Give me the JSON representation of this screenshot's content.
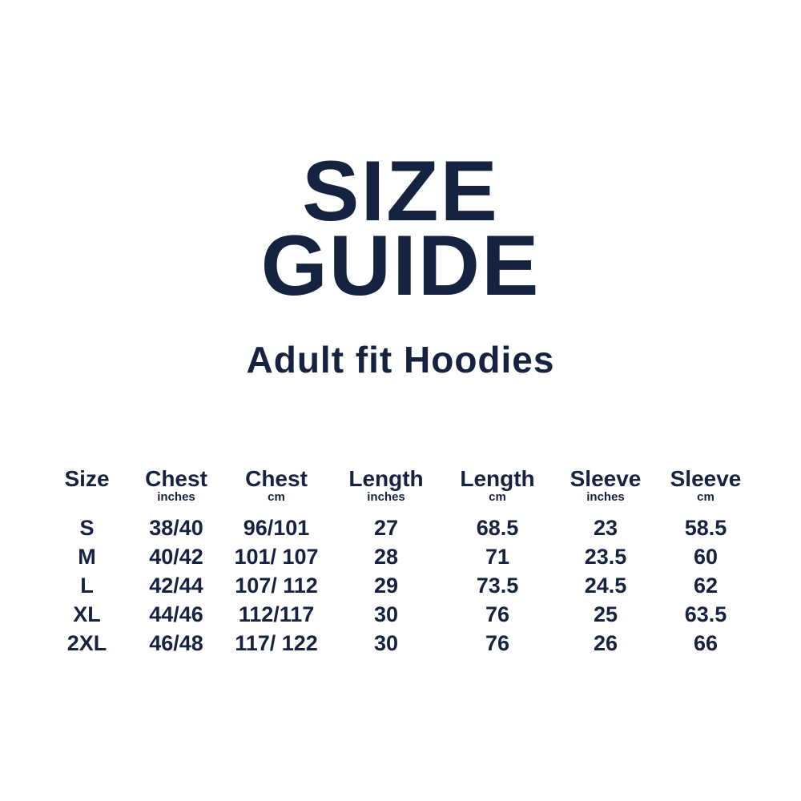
{
  "header": {
    "title_line1": "SIZE",
    "title_line2": "GUIDE",
    "subtitle": "Adult fit Hoodies"
  },
  "colors": {
    "background": "#FFFFFF",
    "text": "#152240"
  },
  "chart_data": {
    "type": "table",
    "title": "SIZE GUIDE",
    "subtitle": "Adult fit Hoodies",
    "columns": [
      {
        "label": "Size",
        "unit": ""
      },
      {
        "label": "Chest",
        "unit": "inches"
      },
      {
        "label": "Chest",
        "unit": "cm"
      },
      {
        "label": "Length",
        "unit": "inches"
      },
      {
        "label": "Length",
        "unit": "cm"
      },
      {
        "label": "Sleeve",
        "unit": "inches"
      },
      {
        "label": "Sleeve",
        "unit": "cm"
      }
    ],
    "rows": [
      [
        "S",
        "38/40",
        "96/101",
        "27",
        "68.5",
        "23",
        "58.5"
      ],
      [
        "M",
        "40/42",
        "101/ 107",
        "28",
        "71",
        "23.5",
        "60"
      ],
      [
        "L",
        "42/44",
        "107/ 112",
        "29",
        "73.5",
        "24.5",
        "62"
      ],
      [
        "XL",
        "44/46",
        "112/117",
        "30",
        "76",
        "25",
        "63.5"
      ],
      [
        "2XL",
        "46/48",
        "117/ 122",
        "30",
        "76",
        "26",
        "66"
      ]
    ]
  }
}
